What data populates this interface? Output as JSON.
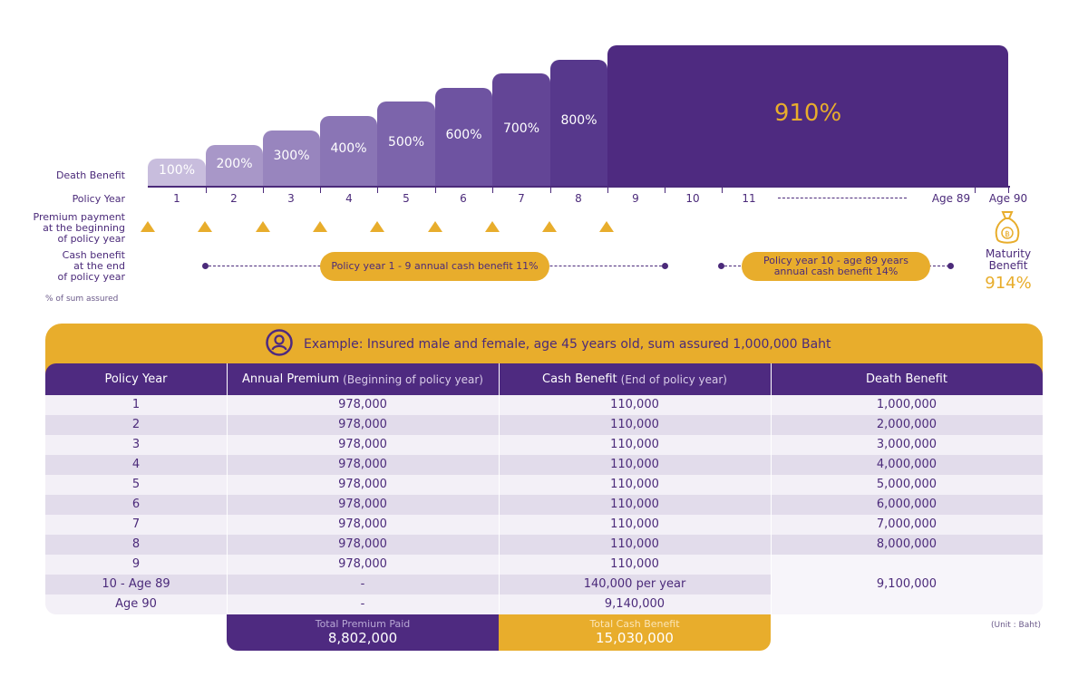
{
  "chart": {
    "row_labels": {
      "death_benefit": "Death Benefit",
      "policy_year": "Policy Year",
      "premium": [
        "Premium payment",
        "at the beginning",
        "of policy year"
      ],
      "cash_benefit": [
        "Cash benefit",
        "at the end",
        "of policy year"
      ],
      "sum_assured_note": "% of sum assured"
    },
    "steps": [
      "100%",
      "200%",
      "300%",
      "400%",
      "500%",
      "600%",
      "700%",
      "800%",
      "910%"
    ],
    "years": [
      "1",
      "2",
      "3",
      "4",
      "5",
      "6",
      "7",
      "8",
      "9",
      "10",
      "11",
      "Age 89",
      "Age 90"
    ],
    "pill_1": "Policy year 1 - 9 annual cash benefit 11%",
    "pill_2": [
      "Policy year 10 - age 89 years",
      "annual cash benefit 14%"
    ],
    "maturity": {
      "label": [
        "Maturity",
        "Benefit"
      ],
      "value": "914%"
    },
    "colors": {
      "purple": "#4e2a80",
      "gold": "#e8ad2c"
    }
  },
  "table": {
    "example": "Example: Insured male and female, age 45 years old, sum assured 1,000,000 Baht",
    "headers": {
      "policy_year": "Policy Year",
      "annual_premium": "Annual Premium",
      "annual_premium_note": "(Beginning of policy year)",
      "cash_benefit": "Cash Benefit",
      "cash_benefit_note": "(End of policy year)",
      "death_benefit": "Death Benefit"
    },
    "rows": [
      {
        "year": "1",
        "premium": "978,000",
        "cash": "110,000",
        "death": "1,000,000"
      },
      {
        "year": "2",
        "premium": "978,000",
        "cash": "110,000",
        "death": "2,000,000"
      },
      {
        "year": "3",
        "premium": "978,000",
        "cash": "110,000",
        "death": "3,000,000"
      },
      {
        "year": "4",
        "premium": "978,000",
        "cash": "110,000",
        "death": "4,000,000"
      },
      {
        "year": "5",
        "premium": "978,000",
        "cash": "110,000",
        "death": "5,000,000"
      },
      {
        "year": "6",
        "premium": "978,000",
        "cash": "110,000",
        "death": "6,000,000"
      },
      {
        "year": "7",
        "premium": "978,000",
        "cash": "110,000",
        "death": "7,000,000"
      },
      {
        "year": "8",
        "premium": "978,000",
        "cash": "110,000",
        "death": "8,000,000"
      },
      {
        "year": "9",
        "premium": "978,000",
        "cash": "110,000",
        "death": ""
      },
      {
        "year": "10 - Age 89",
        "premium": "-",
        "cash": "140,000 per year",
        "death": ""
      },
      {
        "year": "Age 90",
        "premium": "-",
        "cash": "9,140,000",
        "death": ""
      }
    ],
    "death_merged": "9,100,000",
    "totals": {
      "premium_label": "Total Premium Paid",
      "premium_value": "8,802,000",
      "cash_label": "Total Cash Benefit",
      "cash_value": "15,030,000"
    },
    "unit": "(Unit : Baht)"
  }
}
